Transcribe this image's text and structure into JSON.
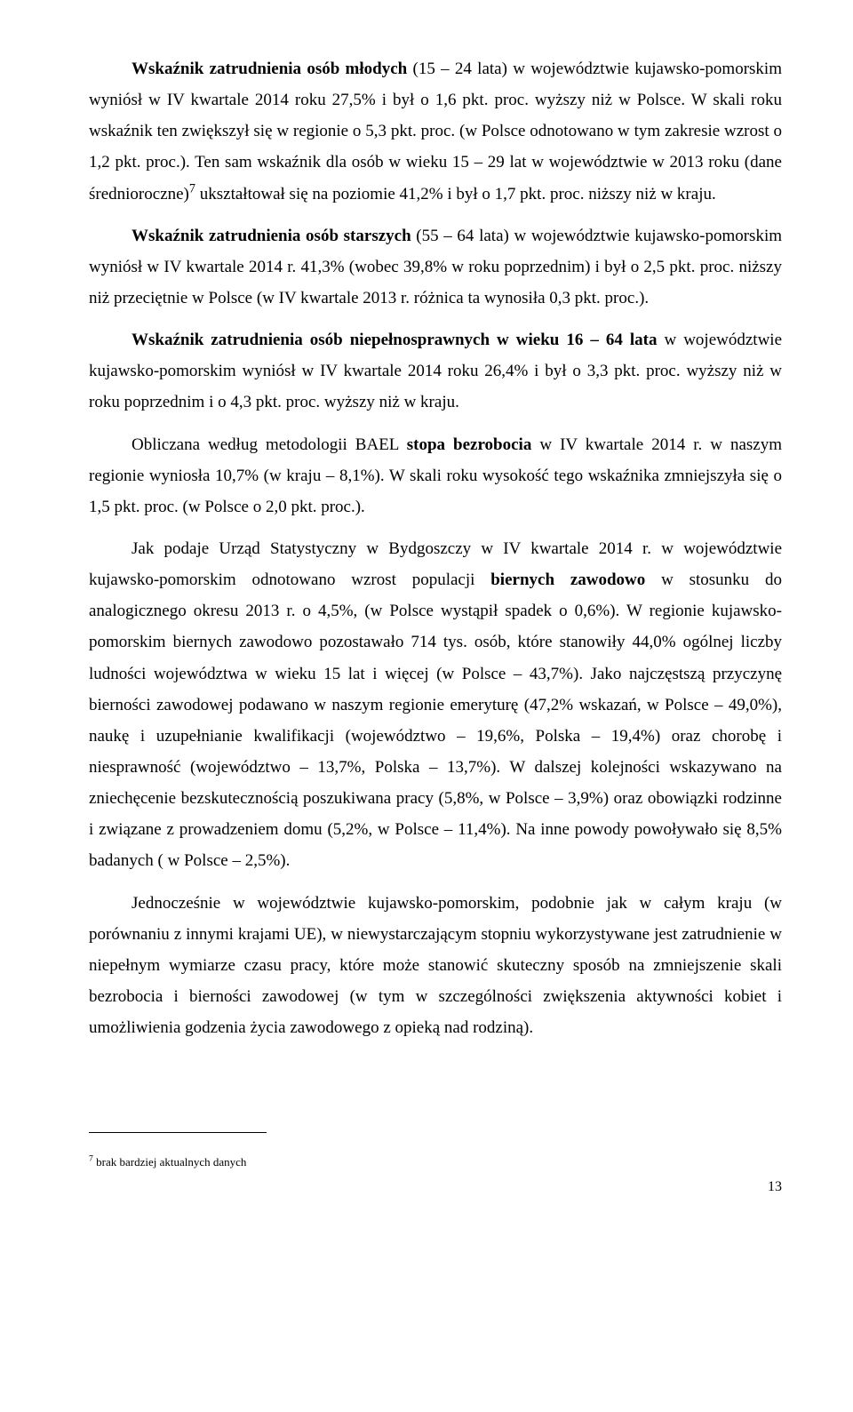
{
  "paragraphs": {
    "p1": "<b>Wskaźnik zatrudnienia osób młodych</b> (15 – 24 lata) w województwie kujawsko-pomorskim wyniósł w IV kwartale 2014 roku 27,5% i był o 1,6 pkt. proc. wyższy niż w Polsce. W skali roku wskaźnik ten zwiększył się w regionie o 5,3 pkt. proc. (w Polsce odnotowano w tym zakresie wzrost o 1,2 pkt. proc.). Ten sam wskaźnik dla osób w wieku 15 – 29 lat w województwie w 2013 roku (dane średnioroczne)<sup>7</sup> ukształtował się na poziomie 41,2% i był o 1,7 pkt. proc. niższy niż w kraju.",
    "p2": "<b>Wskaźnik zatrudnienia osób starszych</b> (55 – 64 lata) w województwie kujawsko-pomorskim wyniósł w IV kwartale 2014 r. 41,3% (wobec 39,8% w roku poprzednim) i był o 2,5 pkt. proc. niższy niż przeciętnie w Polsce (w IV kwartale 2013 r. różnica ta wynosiła 0,3 pkt. proc.).",
    "p3": "<b>Wskaźnik zatrudnienia osób niepełnosprawnych w wieku 16 – 64 lata</b> w województwie kujawsko-pomorskim wyniósł w IV kwartale 2014 roku 26,4% i był o 3,3 pkt. proc. wyższy niż w roku poprzednim i o 4,3 pkt. proc. wyższy niż w kraju.",
    "p4": "Obliczana według metodologii BAEL <b>stopa bezrobocia</b> w IV kwartale 2014 r. w naszym regionie wyniosła 10,7% (w kraju – 8,1%). W skali roku wysokość tego wskaźnika zmniejszyła się o 1,5 pkt. proc. (w Polsce o 2,0 pkt. proc.).",
    "p5": "Jak podaje Urząd Statystyczny w Bydgoszczy w IV kwartale 2014 r. w województwie kujawsko-pomorskim odnotowano wzrost populacji <b>biernych zawodowo</b> w stosunku do analogicznego okresu 2013 r. o 4,5%, (w Polsce wystąpił spadek o 0,6%). W regionie kujawsko-pomorskim biernych zawodowo pozostawało 714 tys. osób, które stanowiły 44,0% ogólnej liczby ludności województwa w wieku 15 lat i więcej (w Polsce – 43,7%). Jako najczęstszą przyczynę bierności zawodowej podawano w naszym regionie emeryturę (47,2% wskazań, w Polsce – 49,0%), naukę i uzupełnianie kwalifikacji (województwo – 19,6%, Polska – 19,4%) oraz chorobę i niesprawność (województwo – 13,7%, Polska – 13,7%). W dalszej kolejności wskazywano na zniechęcenie bezskutecznością poszukiwana pracy (5,8%, w Polsce – 3,9%) oraz obowiązki rodzinne i związane z prowadzeniem domu (5,2%, w Polsce – 11,4%). Na inne powody powoływało się 8,5% badanych ( w Polsce – 2,5%).",
    "p6": "Jednocześnie w województwie kujawsko-pomorskim, podobnie jak w całym kraju (w porównaniu z innymi krajami UE), w niewystarczającym stopniu wykorzystywane jest zatrudnienie w niepełnym wymiarze czasu pracy, które może stanowić skuteczny sposób na zmniejszenie skali bezrobocia i bierności zawodowej (w tym w szczególności zwiększenia aktywności kobiet i umożliwienia godzenia życia zawodowego z opieką nad rodziną)."
  },
  "footnote": "<sup>7</sup> brak bardziej aktualnych danych",
  "page_number": "13"
}
